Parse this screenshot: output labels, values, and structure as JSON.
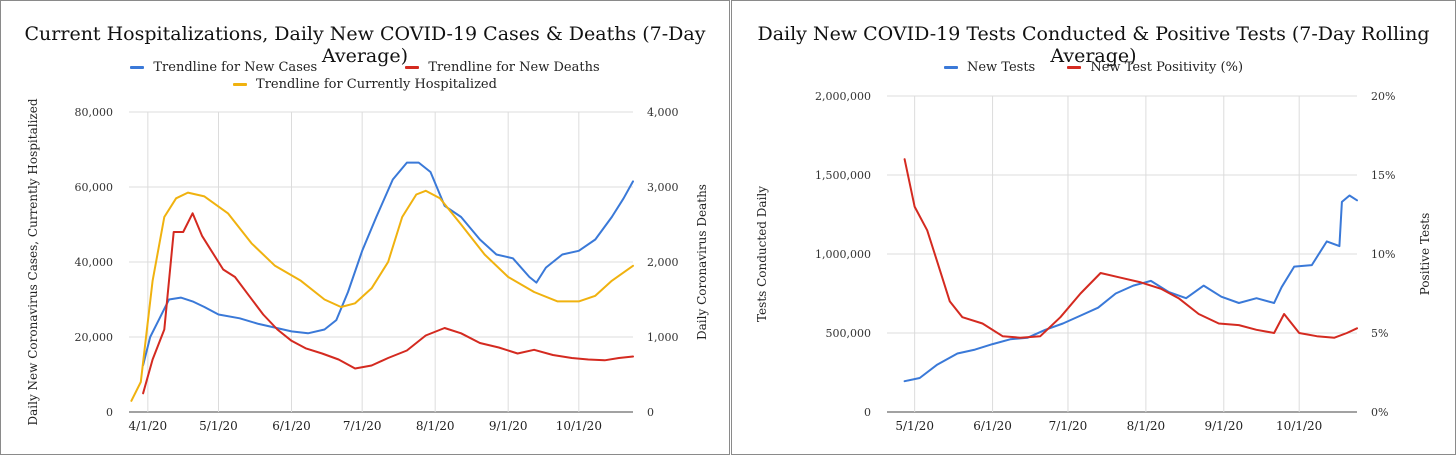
{
  "chart_data": [
    {
      "type": "line",
      "title": "Current Hospitalizations, Daily New COVID-19 Cases & Deaths (7-Day Average)",
      "xlabel": "",
      "ylabel": "Daily New Coronavirus Cases, Currently Hospitalized",
      "y2label": "Daily Coronavirus Deaths",
      "x_ticks": [
        "4/1/20",
        "5/1/20",
        "6/1/20",
        "7/1/20",
        "8/1/20",
        "9/1/20",
        "10/1/20"
      ],
      "x_range": [
        "2020-03-24",
        "2020-10-24"
      ],
      "ylim": [
        0,
        80000
      ],
      "y_ticks": [
        "0",
        "20,000",
        "40,000",
        "60,000",
        "80,000"
      ],
      "y2lim": [
        0,
        4000
      ],
      "y2_ticks": [
        "0",
        "1,000",
        "2,000",
        "3,000",
        "4,000"
      ],
      "legend_position": "top",
      "grid": true,
      "series": [
        {
          "name": "Trendline for New Cases",
          "color": "#3a79d8",
          "axis": "left",
          "points": [
            [
              "2020-03-30",
              12500
            ],
            [
              "2020-04-02",
              20000
            ],
            [
              "2020-04-06",
              25000
            ],
            [
              "2020-04-10",
              30000
            ],
            [
              "2020-04-15",
              30500
            ],
            [
              "2020-04-20",
              29500
            ],
            [
              "2020-04-25",
              28000
            ],
            [
              "2020-05-01",
              26000
            ],
            [
              "2020-05-10",
              25000
            ],
            [
              "2020-05-18",
              23500
            ],
            [
              "2020-05-25",
              22500
            ],
            [
              "2020-06-01",
              21500
            ],
            [
              "2020-06-08",
              21000
            ],
            [
              "2020-06-15",
              22000
            ],
            [
              "2020-06-20",
              24500
            ],
            [
              "2020-06-25",
              32000
            ],
            [
              "2020-07-01",
              43000
            ],
            [
              "2020-07-07",
              52000
            ],
            [
              "2020-07-14",
              62000
            ],
            [
              "2020-07-20",
              66500
            ],
            [
              "2020-07-25",
              66500
            ],
            [
              "2020-07-30",
              64000
            ],
            [
              "2020-08-05",
              55000
            ],
            [
              "2020-08-12",
              52000
            ],
            [
              "2020-08-20",
              46000
            ],
            [
              "2020-08-27",
              42000
            ],
            [
              "2020-09-03",
              41000
            ],
            [
              "2020-09-10",
              36000
            ],
            [
              "2020-09-13",
              34500
            ],
            [
              "2020-09-17",
              38500
            ],
            [
              "2020-09-24",
              42000
            ],
            [
              "2020-10-01",
              43000
            ],
            [
              "2020-10-08",
              46000
            ],
            [
              "2020-10-15",
              52000
            ],
            [
              "2020-10-20",
              57000
            ],
            [
              "2020-10-24",
              61500
            ]
          ]
        },
        {
          "name": "Trendline for New Deaths",
          "color": "#d42a20",
          "axis": "right",
          "points": [
            [
              "2020-03-30",
              250
            ],
            [
              "2020-04-03",
              700
            ],
            [
              "2020-04-08",
              1100
            ],
            [
              "2020-04-12",
              2400
            ],
            [
              "2020-04-16",
              2400
            ],
            [
              "2020-04-20",
              2650
            ],
            [
              "2020-04-24",
              2350
            ],
            [
              "2020-04-28",
              2150
            ],
            [
              "2020-05-03",
              1900
            ],
            [
              "2020-05-08",
              1800
            ],
            [
              "2020-05-14",
              1550
            ],
            [
              "2020-05-20",
              1300
            ],
            [
              "2020-05-26",
              1100
            ],
            [
              "2020-06-01",
              950
            ],
            [
              "2020-06-07",
              850
            ],
            [
              "2020-06-14",
              780
            ],
            [
              "2020-06-21",
              700
            ],
            [
              "2020-06-28",
              580
            ],
            [
              "2020-07-05",
              620
            ],
            [
              "2020-07-12",
              720
            ],
            [
              "2020-07-20",
              820
            ],
            [
              "2020-07-28",
              1020
            ],
            [
              "2020-08-05",
              1120
            ],
            [
              "2020-08-12",
              1050
            ],
            [
              "2020-08-20",
              920
            ],
            [
              "2020-08-28",
              860
            ],
            [
              "2020-09-05",
              780
            ],
            [
              "2020-09-12",
              830
            ],
            [
              "2020-09-20",
              760
            ],
            [
              "2020-09-28",
              720
            ],
            [
              "2020-10-05",
              700
            ],
            [
              "2020-10-12",
              690
            ],
            [
              "2020-10-18",
              720
            ],
            [
              "2020-10-24",
              740
            ]
          ]
        },
        {
          "name": "Trendline for Currently Hospitalized",
          "color": "#f0b20f",
          "axis": "left",
          "points": [
            [
              "2020-03-25",
              3000
            ],
            [
              "2020-03-29",
              8000
            ],
            [
              "2020-04-03",
              35000
            ],
            [
              "2020-04-08",
              52000
            ],
            [
              "2020-04-13",
              57000
            ],
            [
              "2020-04-18",
              58500
            ],
            [
              "2020-04-25",
              57500
            ],
            [
              "2020-05-05",
              53000
            ],
            [
              "2020-05-15",
              45000
            ],
            [
              "2020-05-25",
              39000
            ],
            [
              "2020-06-05",
              35000
            ],
            [
              "2020-06-15",
              30000
            ],
            [
              "2020-06-22",
              28000
            ],
            [
              "2020-06-28",
              29000
            ],
            [
              "2020-07-05",
              33000
            ],
            [
              "2020-07-12",
              40000
            ],
            [
              "2020-07-18",
              52000
            ],
            [
              "2020-07-24",
              58000
            ],
            [
              "2020-07-28",
              59000
            ],
            [
              "2020-08-03",
              57000
            ],
            [
              "2020-08-12",
              50000
            ],
            [
              "2020-08-22",
              42000
            ],
            [
              "2020-09-01",
              36000
            ],
            [
              "2020-09-12",
              32000
            ],
            [
              "2020-09-22",
              29500
            ],
            [
              "2020-10-01",
              29500
            ],
            [
              "2020-10-08",
              31000
            ],
            [
              "2020-10-15",
              35000
            ],
            [
              "2020-10-24",
              39000
            ]
          ]
        }
      ]
    },
    {
      "type": "line",
      "title": "Daily New COVID-19 Tests Conducted & Positive Tests (7-Day Rolling Average)",
      "xlabel": "",
      "ylabel": "Tests Conducted Daily",
      "y2label": "Positive Tests",
      "x_ticks": [
        "5/1/20",
        "6/1/20",
        "7/1/20",
        "8/1/20",
        "9/1/20",
        "10/1/20"
      ],
      "x_range": [
        "2020-04-20",
        "2020-10-24"
      ],
      "ylim": [
        0,
        2000000
      ],
      "y_ticks": [
        "0",
        "500,000",
        "1,000,000",
        "1,500,000",
        "2,000,000"
      ],
      "y2lim": [
        0,
        20
      ],
      "y2_ticks": [
        "0%",
        "5%",
        "10%",
        "15%",
        "20%"
      ],
      "legend_position": "top",
      "grid": true,
      "series": [
        {
          "name": "New Tests",
          "color": "#3a79d8",
          "axis": "left",
          "points": [
            [
              "2020-04-27",
              195000
            ],
            [
              "2020-05-03",
              215000
            ],
            [
              "2020-05-10",
              300000
            ],
            [
              "2020-05-18",
              370000
            ],
            [
              "2020-05-25",
              395000
            ],
            [
              "2020-06-01",
              430000
            ],
            [
              "2020-06-08",
              460000
            ],
            [
              "2020-06-15",
              470000
            ],
            [
              "2020-06-22",
              520000
            ],
            [
              "2020-06-29",
              560000
            ],
            [
              "2020-07-06",
              610000
            ],
            [
              "2020-07-13",
              660000
            ],
            [
              "2020-07-20",
              750000
            ],
            [
              "2020-07-27",
              800000
            ],
            [
              "2020-08-03",
              830000
            ],
            [
              "2020-08-10",
              760000
            ],
            [
              "2020-08-17",
              720000
            ],
            [
              "2020-08-24",
              800000
            ],
            [
              "2020-08-31",
              730000
            ],
            [
              "2020-09-07",
              690000
            ],
            [
              "2020-09-14",
              720000
            ],
            [
              "2020-09-21",
              690000
            ],
            [
              "2020-09-24",
              790000
            ],
            [
              "2020-09-29",
              920000
            ],
            [
              "2020-10-06",
              930000
            ],
            [
              "2020-10-12",
              1080000
            ],
            [
              "2020-10-17",
              1050000
            ],
            [
              "2020-10-18",
              1330000
            ],
            [
              "2020-10-21",
              1370000
            ],
            [
              "2020-10-24",
              1340000
            ]
          ]
        },
        {
          "name": "New Test Positivity (%)",
          "color": "#d42a20",
          "axis": "right",
          "points": [
            [
              "2020-04-27",
              16.0
            ],
            [
              "2020-05-01",
              13.0
            ],
            [
              "2020-05-06",
              11.5
            ],
            [
              "2020-05-10",
              9.5
            ],
            [
              "2020-05-15",
              7.0
            ],
            [
              "2020-05-20",
              6.0
            ],
            [
              "2020-05-28",
              5.6
            ],
            [
              "2020-06-05",
              4.8
            ],
            [
              "2020-06-12",
              4.7
            ],
            [
              "2020-06-20",
              4.8
            ],
            [
              "2020-06-28",
              6.0
            ],
            [
              "2020-07-06",
              7.5
            ],
            [
              "2020-07-14",
              8.8
            ],
            [
              "2020-07-22",
              8.5
            ],
            [
              "2020-07-30",
              8.2
            ],
            [
              "2020-08-07",
              7.8
            ],
            [
              "2020-08-14",
              7.2
            ],
            [
              "2020-08-22",
              6.2
            ],
            [
              "2020-08-30",
              5.6
            ],
            [
              "2020-09-07",
              5.5
            ],
            [
              "2020-09-14",
              5.2
            ],
            [
              "2020-09-21",
              5.0
            ],
            [
              "2020-09-25",
              6.2
            ],
            [
              "2020-10-01",
              5.0
            ],
            [
              "2020-10-08",
              4.8
            ],
            [
              "2020-10-15",
              4.7
            ],
            [
              "2020-10-20",
              5.0
            ],
            [
              "2020-10-24",
              5.3
            ]
          ]
        }
      ]
    }
  ]
}
